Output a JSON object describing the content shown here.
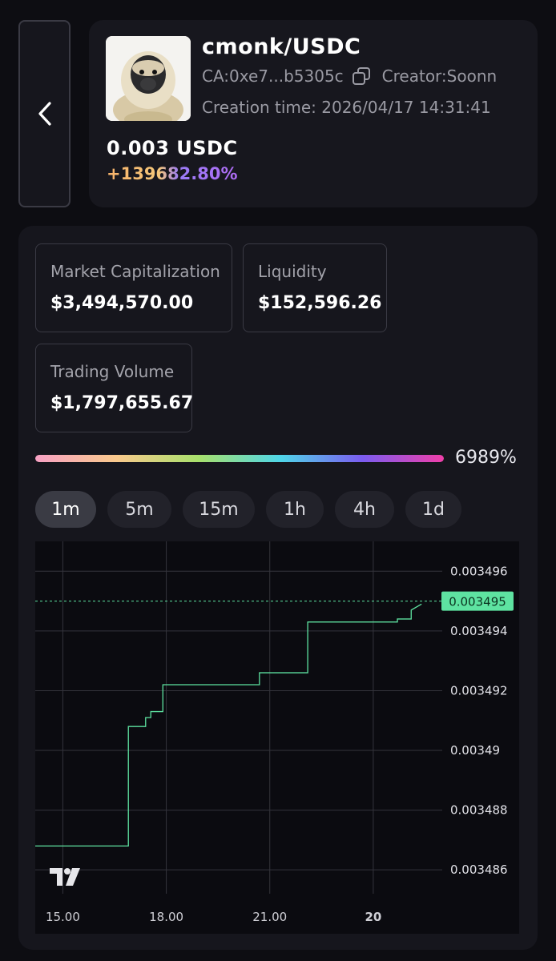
{
  "header": {
    "pair": "cmonk/USDC",
    "ca": "CA:0xe7...b5305c",
    "creator": "Creator:Soonn",
    "creation_time": "Creation time: 2026/04/17 14:31:41",
    "price": "0.003 USDC",
    "change": "+139682.80%"
  },
  "stats": {
    "market_cap_label": "Market Capitalization",
    "market_cap_value": "$3,494,570.00",
    "liquidity_label": "Liquidity",
    "liquidity_value": "$152,596.26",
    "volume_label": "Trading Volume",
    "volume_value": "$1,797,655.67"
  },
  "progress": {
    "label": "6989%",
    "fraction": 1.0
  },
  "tabs": [
    "1m",
    "5m",
    "15m",
    "1h",
    "4h",
    "1d"
  ],
  "active_tab": "1m",
  "colors": {
    "line": "#5ee3a1",
    "price_tag": "#5ee3a1",
    "background": "#0d0d12",
    "panel": "#16161d"
  },
  "chart_data": {
    "type": "line",
    "x_ticks": [
      "15.00",
      "18.00",
      "21.00",
      "20"
    ],
    "x_tick_hours": [
      15,
      18,
      21,
      24
    ],
    "y_ticks": [
      "0.003496",
      "0.003494",
      "0.003492",
      "0.00349",
      "0.003488",
      "0.003486"
    ],
    "y_tick_values": [
      0.003496,
      0.003494,
      0.003492,
      0.00349,
      0.003488,
      0.003486
    ],
    "xlim": [
      14.2,
      26.0
    ],
    "ylim": [
      0.0034852,
      0.003497
    ],
    "current_price_label": "0.003495",
    "current_price": 0.003495,
    "grid": true,
    "series": [
      {
        "x": [
          14.2,
          16.9,
          16.9,
          17.4,
          17.4,
          17.55,
          17.55,
          17.9,
          17.9,
          20.7,
          20.7,
          22.1,
          22.1,
          24.7,
          24.7,
          25.1,
          25.1,
          25.4
        ],
        "y": [
          0.0034868,
          0.0034868,
          0.0034908,
          0.0034908,
          0.0034911,
          0.0034911,
          0.0034913,
          0.0034913,
          0.0034922,
          0.0034922,
          0.0034926,
          0.0034926,
          0.0034943,
          0.0034943,
          0.0034944,
          0.0034944,
          0.0034947,
          0.0034949
        ]
      }
    ]
  }
}
